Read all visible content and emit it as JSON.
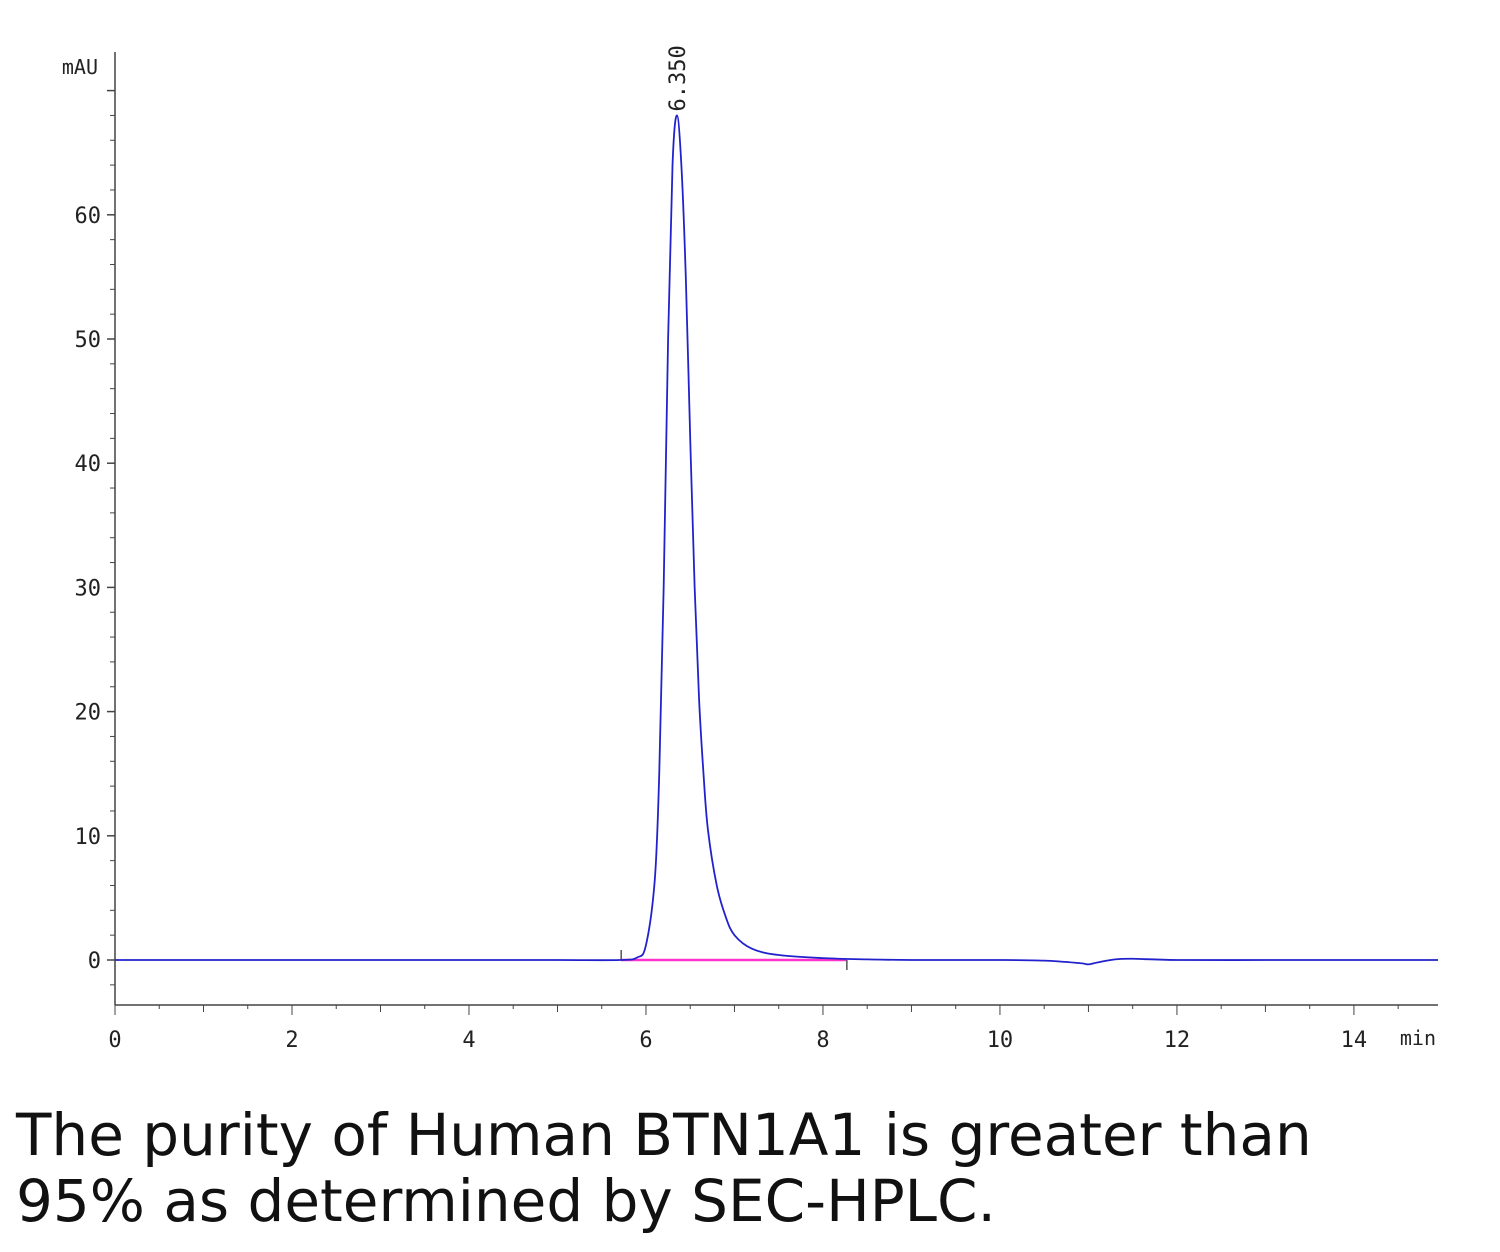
{
  "chart_data": {
    "type": "line",
    "x_unit": "min",
    "y_unit": "mAU",
    "xlim": [
      0,
      14.95
    ],
    "ylim": [
      -3.6,
      72
    ],
    "x_ticks": [
      0,
      2,
      4,
      6,
      8,
      10,
      12,
      14
    ],
    "x_tick_labels": [
      "0",
      "2",
      "4",
      "6",
      "8",
      "10",
      "12",
      "14"
    ],
    "y_ticks": [
      0,
      10,
      20,
      30,
      40,
      50,
      60
    ],
    "y_tick_labels": [
      "0",
      "10",
      "20",
      "30",
      "40",
      "50",
      "60"
    ],
    "grid": false,
    "series": [
      {
        "color": "#2222cc",
        "x": [
          0,
          1,
          2,
          3,
          4,
          5,
          5.7,
          5.9,
          6.0,
          6.1,
          6.15,
          6.2,
          6.25,
          6.3,
          6.35,
          6.4,
          6.45,
          6.5,
          6.55,
          6.6,
          6.65,
          6.7,
          6.8,
          6.9,
          7.0,
          7.2,
          7.5,
          8.0,
          8.5,
          9.0,
          10.0,
          10.5,
          10.9,
          11.0,
          11.1,
          11.3,
          11.5,
          12.0,
          13.0,
          14.0,
          14.95
        ],
        "y": [
          0,
          0,
          0,
          0,
          0,
          0,
          0,
          0.2,
          1.2,
          6.5,
          15,
          30,
          50,
          64,
          68,
          64,
          55,
          42,
          30,
          21,
          15,
          10.5,
          6,
          3.5,
          2,
          0.9,
          0.4,
          0.15,
          0.05,
          0,
          0,
          -0.05,
          -0.25,
          -0.35,
          -0.2,
          0.05,
          0.1,
          0,
          0,
          0,
          0
        ]
      }
    ],
    "baseline": {
      "color": "#ff33cc",
      "x": [
        5.72,
        8.27
      ],
      "y": [
        0,
        0
      ]
    },
    "integration_marks_x": [
      5.72,
      8.27
    ],
    "annotations": [
      {
        "text": "6.350",
        "x": 6.35,
        "y": 68
      }
    ]
  },
  "caption": {
    "line1": "The purity of Human BTN1A1 is greater than",
    "line2": "95% as determined by SEC-HPLC."
  }
}
